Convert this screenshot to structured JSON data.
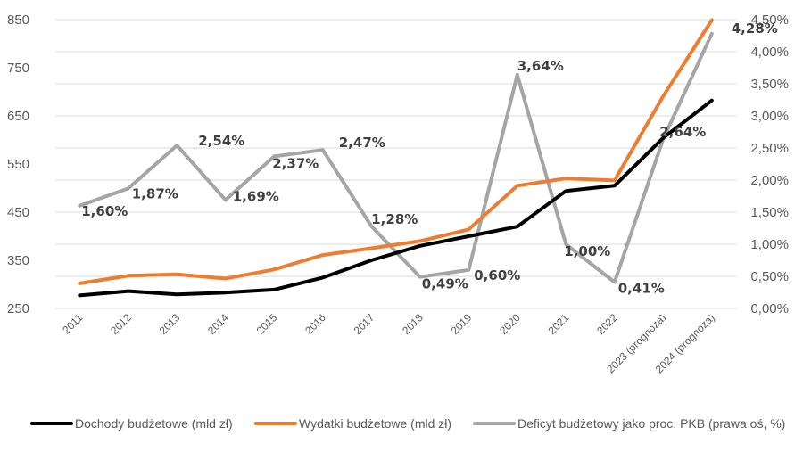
{
  "chart_data": {
    "type": "line",
    "categories": [
      "2011",
      "2012",
      "2013",
      "2014",
      "2015",
      "2016",
      "2017",
      "2018",
      "2019",
      "2020",
      "2021",
      "2022",
      "2023 (prognoza)",
      "2024 (prognoza)"
    ],
    "series": [
      {
        "name": "Dochody budżetowe (mld zł)",
        "axis": "left",
        "color": "#000000",
        "values": [
          277,
          286,
          279,
          283,
          289,
          314,
          350,
          380,
          400,
          420,
          494,
          505,
          604,
          682
        ]
      },
      {
        "name": "Wydatki budżetowe (mld zł)",
        "axis": "left",
        "color": "#ed7d31",
        "values": [
          302,
          318,
          321,
          312,
          331,
          361,
          375,
          390,
          414,
          505,
          520,
          516,
          691,
          849
        ]
      },
      {
        "name": "Deficyt budżetowy jako proc. PKB (prawa oś, %)",
        "axis": "right",
        "color": "#a5a5a5",
        "values": [
          1.6,
          1.87,
          2.54,
          1.69,
          2.37,
          2.47,
          1.28,
          0.49,
          0.6,
          3.64,
          1.0,
          0.41,
          2.64,
          4.28
        ],
        "data_labels": [
          "1,60%",
          "1,87%",
          "2,54%",
          "1,69%",
          "2,37%",
          "2,47%",
          "1,28%",
          "0,49%",
          "0,60%",
          "3,64%",
          "1,00%",
          "0,41%",
          "2,64%",
          "4,28%"
        ]
      }
    ],
    "left_axis": {
      "ylim": [
        250,
        850
      ],
      "ticks": [
        250,
        350,
        450,
        550,
        650,
        750,
        850
      ],
      "tick_labels": [
        "250",
        "350",
        "450",
        "550",
        "650",
        "750",
        "850"
      ]
    },
    "right_axis": {
      "ylim": [
        0,
        4.5
      ],
      "ticks": [
        0,
        0.5,
        1.0,
        1.5,
        2.0,
        2.5,
        3.0,
        3.5,
        4.0,
        4.5
      ],
      "tick_labels": [
        "0,00%",
        "0,50%",
        "1,00%",
        "1,50%",
        "2,00%",
        "2,50%",
        "3,00%",
        "3,50%",
        "4,00%",
        "4,50%"
      ]
    },
    "grid": true,
    "legend_position": "bottom"
  }
}
